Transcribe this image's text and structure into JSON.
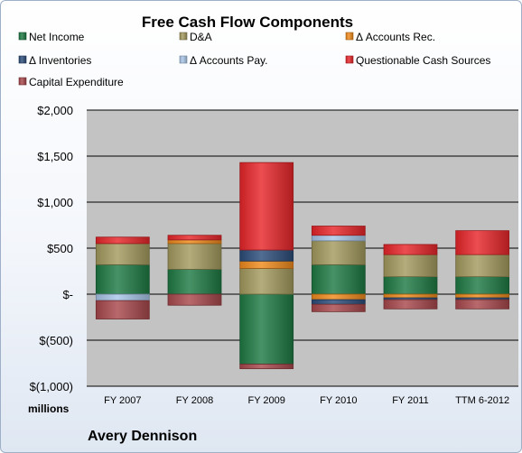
{
  "chart_data": {
    "type": "bar",
    "stacked": true,
    "title": "Free Cash Flow Components",
    "company": "Avery Dennison",
    "unit_label": "millions",
    "categories": [
      "FY 2007",
      "FY 2008",
      "FY 2009",
      "FY 2010",
      "FY 2011",
      "TTM 6-2012"
    ],
    "ylim": [
      -1000,
      2000
    ],
    "yticks": [
      2000,
      1500,
      1000,
      500,
      0,
      -500,
      -1000
    ],
    "ytick_labels": [
      "$2,000",
      "$1,500",
      "$1,000",
      "$500",
      "$-",
      "$(500)",
      "$(1,000)"
    ],
    "grid": true,
    "legend_position": "top",
    "series": [
      {
        "name": "Net Income",
        "color": "#1e7a44",
        "values": [
          320,
          270,
          -760,
          320,
          190,
          190
        ]
      },
      {
        "name": "D&A",
        "color": "#a49a5e",
        "values": [
          230,
          280,
          280,
          260,
          240,
          240
        ]
      },
      {
        "name": "Δ Accounts Rec.",
        "color": "#f08b1c",
        "values": [
          0,
          40,
          80,
          -60,
          -40,
          -40
        ]
      },
      {
        "name": "Δ Inventories",
        "color": "#2c4d7a",
        "values": [
          0,
          0,
          120,
          -50,
          -20,
          -20
        ]
      },
      {
        "name": "Δ Accounts Pay.",
        "color": "#a9c6e8",
        "values": [
          -70,
          0,
          0,
          60,
          0,
          0
        ]
      },
      {
        "name": "Questionable Cash Sources",
        "color": "#e8262a",
        "values": [
          70,
          50,
          950,
          100,
          110,
          260
        ]
      },
      {
        "name": "Capital Expenditure",
        "color": "#a8484c",
        "values": [
          -200,
          -120,
          -50,
          -80,
          -100,
          -100
        ]
      }
    ]
  }
}
